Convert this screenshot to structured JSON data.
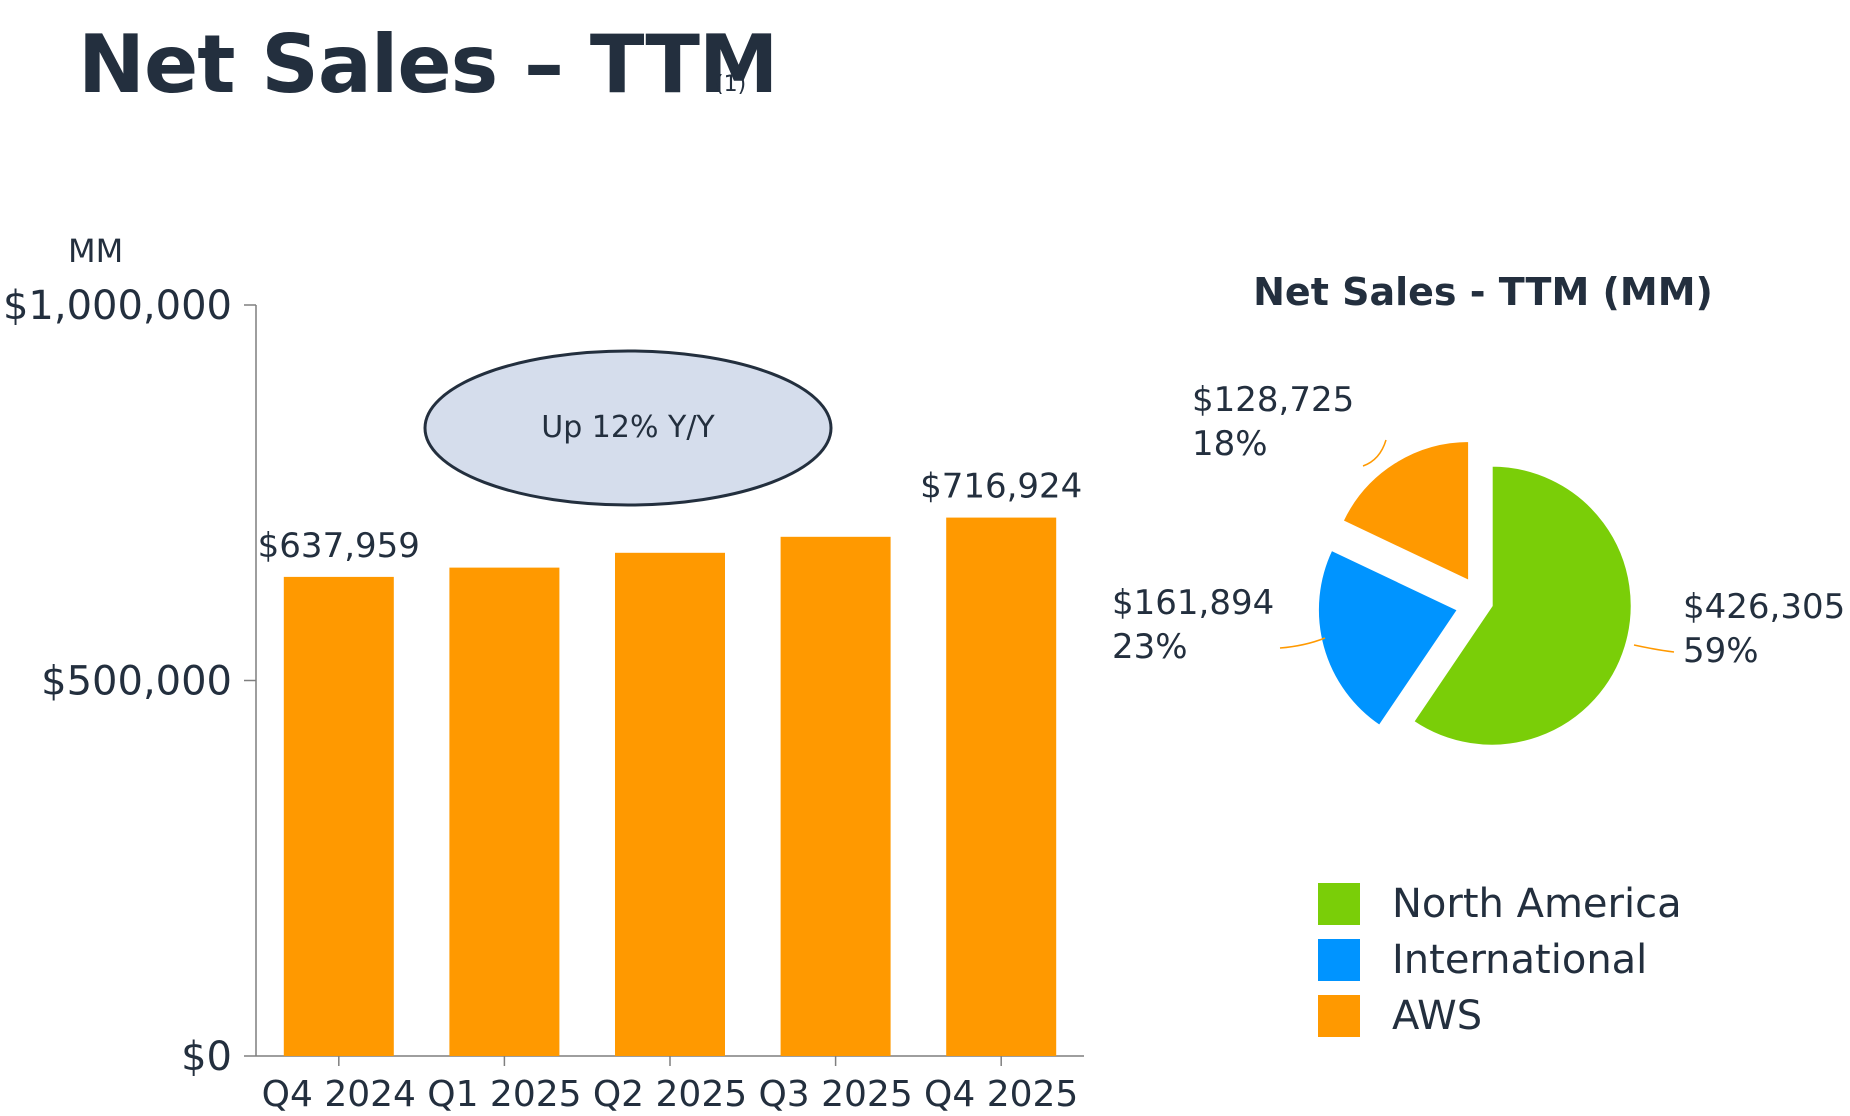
{
  "header": {
    "title": "Net Sales – TTM",
    "footnote": "(1)"
  },
  "chart_data": [
    {
      "type": "bar",
      "title": "",
      "unit_label": "MM",
      "categories": [
        "Q4 2024",
        "Q1 2025",
        "Q2 2025",
        "Q3 2025",
        "Q4 2025"
      ],
      "values": [
        637959,
        650313,
        670038,
        691330,
        716924
      ],
      "data_labels": {
        "Q4 2024": "$637,959",
        "Q4 2025": "$716,924"
      },
      "yticks": [
        {
          "value": 0,
          "label": "$0"
        },
        {
          "value": 500000,
          "label": "$500,000"
        },
        {
          "value": 1000000,
          "label": "$1,000,000"
        }
      ],
      "ylim": [
        0,
        1000000
      ],
      "bar_color": "#FF9900",
      "annotation": {
        "text": "Up 12% Y/Y",
        "fill": "#D5DDEC",
        "stroke": "#232F3E"
      }
    },
    {
      "type": "pie",
      "title": "Net Sales - TTM (MM)",
      "slices": [
        {
          "name": "North America",
          "value": 426305,
          "label": "$426,305",
          "pct": "59%",
          "color": "#7ACE08"
        },
        {
          "name": "International",
          "value": 161894,
          "label": "$161,894",
          "pct": "23%",
          "color": "#0094FF"
        },
        {
          "name": "AWS",
          "value": 128725,
          "label": "$128,725",
          "pct": "18%",
          "color": "#FF9900"
        }
      ],
      "legend_position": "bottom-right"
    }
  ]
}
